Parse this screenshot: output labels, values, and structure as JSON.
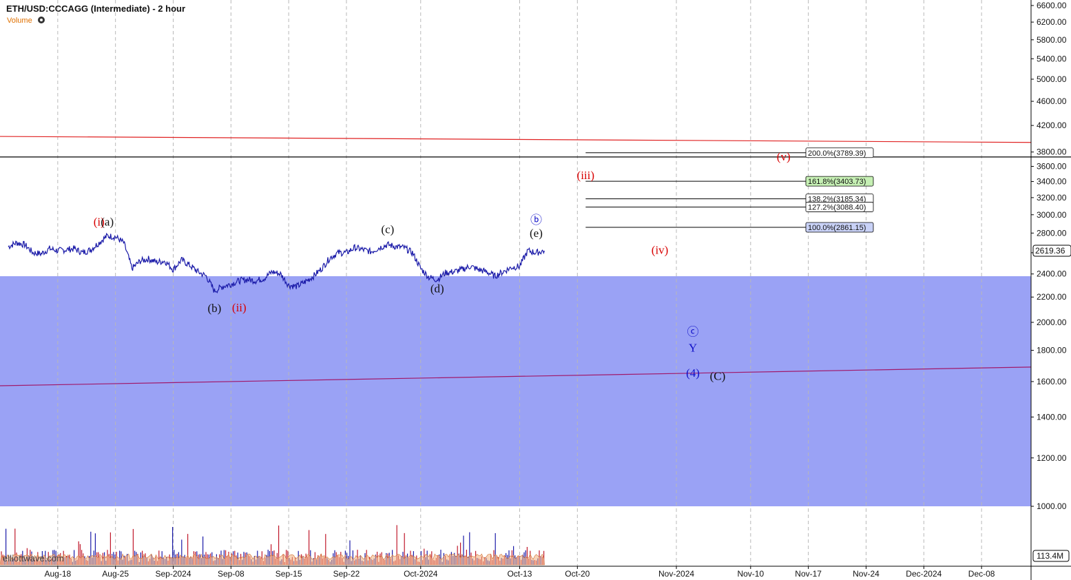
{
  "header": {
    "title": "ETH/USD:CCCAGG (Intermediate) - 2 hour",
    "volume_label": "Volume"
  },
  "watermark": "elliottwave.com",
  "colors": {
    "zone": "#9aa2f5",
    "up_bar": "#1a1aa8",
    "down_bar": "#c0182a",
    "trend_red": "#e02020",
    "trend_purple": "#a0186a",
    "wave_red": "#d80000",
    "wave_blue": "#1010c8",
    "wave_black": "#111111",
    "fib_green": "#c6f0b4",
    "fib_blue": "#c9d2f7"
  },
  "chart_data": {
    "type": "candlestick",
    "title": "ETH/USD:CCCAGG (Intermediate) - 2 hour",
    "y_scale": "log",
    "y_ticks": [
      1000,
      1200,
      1400,
      1600,
      1800,
      2000,
      2200,
      2400,
      2600,
      2800,
      3000,
      3200,
      3400,
      3600,
      3800,
      4200,
      4600,
      5000,
      5400,
      5800,
      6200,
      6600
    ],
    "y_tick_labels": [
      "1000.00",
      "1200.00",
      "1400.00",
      "1600.00",
      "1800.00",
      "2000.00",
      "2200.00",
      "2400.00",
      "2600.00",
      "2800.00",
      "3000.00",
      "3200.00",
      "3400.00",
      "3600.00",
      "3800.00",
      "4200.00",
      "4600.00",
      "5000.00",
      "5400.00",
      "5800.00",
      "6200.00",
      "6600.00"
    ],
    "x_ticks": [
      {
        "date": "2024-08-18",
        "label": "Aug-18"
      },
      {
        "date": "2024-08-25",
        "label": "Aug-25"
      },
      {
        "date": "2024-09-01",
        "label": "Sep-2024"
      },
      {
        "date": "2024-09-08",
        "label": "Sep-08"
      },
      {
        "date": "2024-09-15",
        "label": "Sep-15"
      },
      {
        "date": "2024-09-22",
        "label": "Sep-22"
      },
      {
        "date": "2024-10-01",
        "label": "Oct-2024"
      },
      {
        "date": "2024-10-13",
        "label": "Oct-13"
      },
      {
        "date": "2024-10-20",
        "label": "Oct-20"
      },
      {
        "date": "2024-11-01",
        "label": "Nov-2024"
      },
      {
        "date": "2024-11-10",
        "label": "Nov-10"
      },
      {
        "date": "2024-11-17",
        "label": "Nov-17"
      },
      {
        "date": "2024-11-24",
        "label": "Nov-24"
      },
      {
        "date": "2024-12-01",
        "label": "Dec-2024"
      },
      {
        "date": "2024-12-08",
        "label": "Dec-08"
      }
    ],
    "current_price": "2619.36",
    "volume_scale_label": "113.4M",
    "price_path": [
      [
        "2024-08-12",
        2660
      ],
      [
        "2024-08-13",
        2700
      ],
      [
        "2024-08-14",
        2680
      ],
      [
        "2024-08-15",
        2600
      ],
      [
        "2024-08-16",
        2590
      ],
      [
        "2024-08-17",
        2640
      ],
      [
        "2024-08-18",
        2620
      ],
      [
        "2024-08-19",
        2630
      ],
      [
        "2024-08-20",
        2640
      ],
      [
        "2024-08-21",
        2600
      ],
      [
        "2024-08-22",
        2630
      ],
      [
        "2024-08-23",
        2700
      ],
      [
        "2024-08-24",
        2770
      ],
      [
        "2024-08-25",
        2760
      ],
      [
        "2024-08-26",
        2700
      ],
      [
        "2024-08-27",
        2450
      ],
      [
        "2024-08-28",
        2520
      ],
      [
        "2024-08-29",
        2540
      ],
      [
        "2024-08-30",
        2510
      ],
      [
        "2024-08-31",
        2520
      ],
      [
        "2024-09-01",
        2440
      ],
      [
        "2024-09-02",
        2530
      ],
      [
        "2024-09-03",
        2480
      ],
      [
        "2024-09-04",
        2420
      ],
      [
        "2024-09-05",
        2380
      ],
      [
        "2024-09-06",
        2250
      ],
      [
        "2024-09-07",
        2290
      ],
      [
        "2024-09-08",
        2310
      ],
      [
        "2024-09-09",
        2340
      ],
      [
        "2024-09-10",
        2350
      ],
      [
        "2024-09-11",
        2340
      ],
      [
        "2024-09-12",
        2360
      ],
      [
        "2024-09-13",
        2420
      ],
      [
        "2024-09-14",
        2400
      ],
      [
        "2024-09-15",
        2300
      ],
      [
        "2024-09-16",
        2290
      ],
      [
        "2024-09-17",
        2330
      ],
      [
        "2024-09-18",
        2380
      ],
      [
        "2024-09-19",
        2450
      ],
      [
        "2024-09-20",
        2550
      ],
      [
        "2024-09-21",
        2600
      ],
      [
        "2024-09-22",
        2600
      ],
      [
        "2024-09-23",
        2650
      ],
      [
        "2024-09-24",
        2630
      ],
      [
        "2024-09-25",
        2610
      ],
      [
        "2024-09-26",
        2650
      ],
      [
        "2024-09-27",
        2680
      ],
      [
        "2024-09-28",
        2660
      ],
      [
        "2024-09-29",
        2650
      ],
      [
        "2024-09-30",
        2600
      ],
      [
        "2024-10-01",
        2450
      ],
      [
        "2024-10-02",
        2370
      ],
      [
        "2024-10-03",
        2350
      ],
      [
        "2024-10-04",
        2410
      ],
      [
        "2024-10-05",
        2420
      ],
      [
        "2024-10-06",
        2440
      ],
      [
        "2024-10-07",
        2470
      ],
      [
        "2024-10-08",
        2440
      ],
      [
        "2024-10-09",
        2420
      ],
      [
        "2024-10-10",
        2380
      ],
      [
        "2024-10-11",
        2420
      ],
      [
        "2024-10-12",
        2460
      ],
      [
        "2024-10-13",
        2470
      ],
      [
        "2024-10-14",
        2620
      ],
      [
        "2024-10-15",
        2600
      ],
      [
        "2024-10-16",
        2620
      ]
    ],
    "wave_labels": [
      {
        "text": "(i)",
        "color": "red",
        "date": "2024-08-23",
        "price": 2880
      },
      {
        "text": "(a)",
        "color": "black",
        "date": "2024-08-24",
        "price": 2880
      },
      {
        "text": "(b)",
        "color": "black",
        "date": "2024-09-06",
        "price": 2080
      },
      {
        "text": "(ii)",
        "color": "red",
        "date": "2024-09-09",
        "price": 2085
      },
      {
        "text": "(c)",
        "color": "black",
        "date": "2024-09-27",
        "price": 2800
      },
      {
        "text": "(d)",
        "color": "black",
        "date": "2024-10-03",
        "price": 2240
      },
      {
        "text": "ⓑ",
        "color": "blue",
        "date": "2024-10-15",
        "price": 2900
      },
      {
        "text": "(e)",
        "color": "black",
        "date": "2024-10-15",
        "price": 2760
      },
      {
        "text": "(iii)",
        "color": "red",
        "date": "2024-10-21",
        "price": 3430
      },
      {
        "text": "(iv)",
        "color": "red",
        "date": "2024-10-30",
        "price": 2590
      },
      {
        "text": "(v)",
        "color": "red",
        "date": "2024-11-14",
        "price": 3680
      },
      {
        "text": "ⓒ",
        "color": "blue",
        "date": "2024-11-03",
        "price": 1900
      },
      {
        "text": "Y",
        "color": "blue",
        "date": "2024-11-03",
        "price": 1790
      },
      {
        "text": "(4)",
        "color": "blue",
        "date": "2024-11-03",
        "price": 1630
      },
      {
        "text": "(C)",
        "color": "black",
        "date": "2024-11-06",
        "price": 1610
      }
    ],
    "fib_levels": [
      {
        "label": "200.0%(3789.39)",
        "price": 3789.39,
        "fill": "white"
      },
      {
        "label": "161.8%(3403.73)",
        "price": 3403.73,
        "fill": "green"
      },
      {
        "label": "138.2%(3185.34)",
        "price": 3185.34,
        "fill": "white"
      },
      {
        "label": "127.2%(3088.40)",
        "price": 3088.4,
        "fill": "white"
      },
      {
        "label": "100.0%(2861.15)",
        "price": 2861.15,
        "fill": "blue"
      }
    ],
    "fib_start_date": "2024-10-21",
    "support_zone": {
      "from_price": 1000,
      "to_price": 2380
    },
    "horizontal_line_price": 3730,
    "trendlines": [
      {
        "color": "red",
        "start": [
          "2024-08-11",
          4030
        ],
        "end": [
          "2024-12-14",
          3940
        ]
      },
      {
        "color": "purple",
        "start": [
          "2024-08-11",
          1575
        ],
        "end": [
          "2024-12-14",
          1690
        ]
      }
    ]
  }
}
